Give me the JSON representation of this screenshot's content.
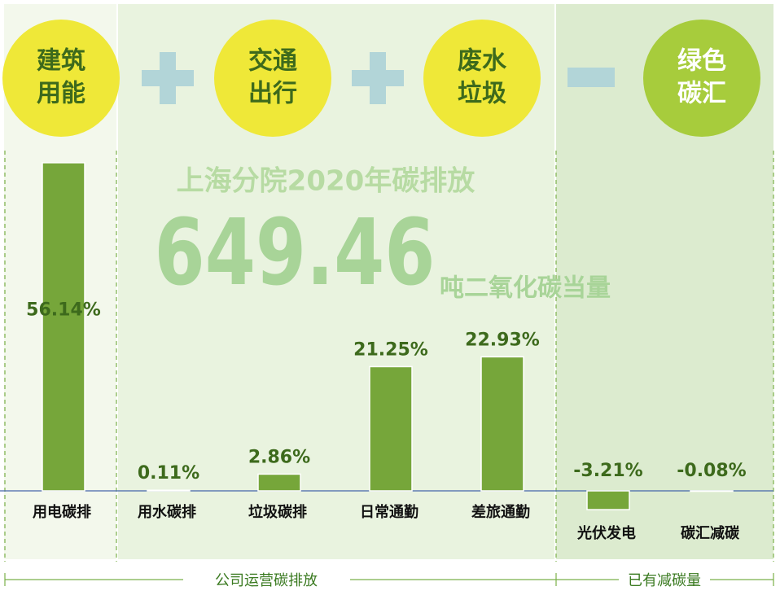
{
  "bubbles": [
    {
      "lines": [
        "建筑",
        "用能"
      ]
    },
    {
      "lines": [
        "交通",
        "出行"
      ]
    },
    {
      "lines": [
        "废水",
        "垃圾"
      ]
    },
    {
      "lines": [
        "绿色",
        "碳汇"
      ]
    }
  ],
  "headline": {
    "title": "上海分院2020年碳排放",
    "total": "649.46",
    "unit": "吨二氧化碳当量"
  },
  "groups": [
    "公司运营碳排放",
    "已有减碳量"
  ],
  "chart_data": {
    "type": "bar",
    "categories": [
      "用电碳排",
      "用水碳排",
      "垃圾碳排",
      "日常通勤",
      "差旅通勤",
      "光伏发电",
      "碳汇减碳"
    ],
    "values": [
      56.14,
      0.11,
      2.86,
      21.25,
      22.93,
      -3.21,
      -0.08
    ],
    "value_labels": [
      "56.14%",
      "0.11%",
      "2.86%",
      "21.25%",
      "22.93%",
      "-3.21%",
      "-0.08%"
    ],
    "color": "#76a63a"
  }
}
